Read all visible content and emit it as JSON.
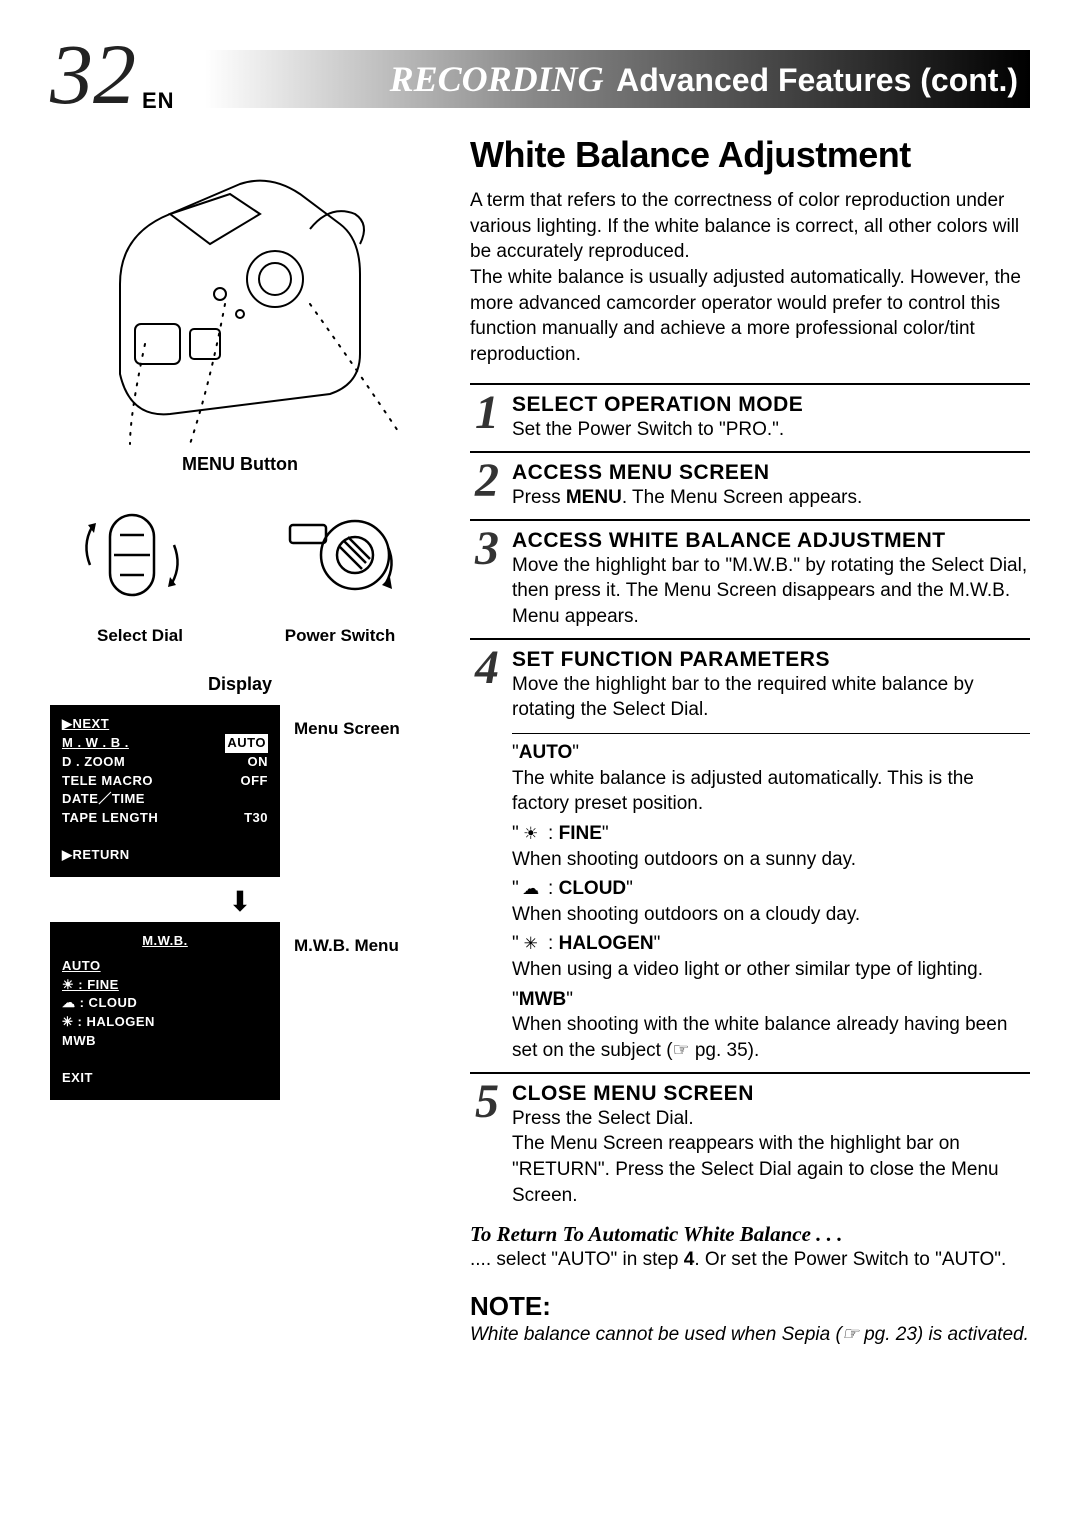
{
  "header": {
    "page_number": "32",
    "lang": "EN",
    "recording": "RECORDING",
    "advanced": "Advanced Features (cont.)"
  },
  "left": {
    "menu_button_label": "MENU Button",
    "select_dial_label": "Select Dial",
    "power_switch_label": "Power Switch",
    "display_heading": "Display",
    "menu_screen_label": "Menu Screen",
    "mwb_menu_label": "M.W.B. Menu",
    "menu_screen": {
      "next": "▶NEXT",
      "mwb_label": "M . W . B .",
      "mwb_value": "AUTO",
      "dzoom_label": "D . ZOOM",
      "dzoom_value": "ON",
      "tele_label": "TELE MACRO",
      "tele_value": "OFF",
      "datetime": "DATE／TIME",
      "tape_label": "TAPE LENGTH",
      "tape_value": "T30",
      "return": "▶RETURN"
    },
    "mwb_screen": {
      "title": "M.W.B.",
      "auto": "AUTO",
      "fine": "☀ : FINE",
      "cloud": "☁ : CLOUD",
      "halogen": "✳ : HALOGEN",
      "mwb": "MWB",
      "exit": "EXIT"
    }
  },
  "right": {
    "section_title": "White Balance Adjustment",
    "intro": "A term that refers to the correctness of color reproduction under various lighting. If the white balance is correct, all other colors will be accurately reproduced.\nThe white balance is usually adjusted automatically. However, the more advanced camcorder operator would prefer to control this function manually and achieve a more professional color/tint reproduction.",
    "steps": [
      {
        "num": "1",
        "heading": "SELECT OPERATION MODE",
        "text": "Set the Power Switch to \"PRO.\"."
      },
      {
        "num": "2",
        "heading": "ACCESS MENU SCREEN",
        "text": "Press MENU. The Menu Screen appears."
      },
      {
        "num": "3",
        "heading": "ACCESS WHITE BALANCE ADJUSTMENT",
        "text": "Move the highlight bar to \"M.W.B.\" by rotating the Select Dial, then press it. The Menu Screen disappears and the M.W.B. Menu appears."
      },
      {
        "num": "4",
        "heading": "SET FUNCTION PARAMETERS",
        "text": "Move the highlight bar to the required white balance by rotating the Select Dial."
      },
      {
        "num": "5",
        "heading": "CLOSE MENU SCREEN",
        "text": "Press the Select Dial.\nThe Menu Screen reappears with the highlight bar on \"RETURN\". Press the Select Dial again to close the Menu Screen."
      }
    ],
    "wb_options": [
      {
        "label": "\"AUTO\"",
        "desc": "The white balance is adjusted automatically. This is the factory preset position."
      },
      {
        "label": "\" ☀  : FINE\"",
        "desc": "When shooting outdoors on a sunny day."
      },
      {
        "label": "\" ☁  : CLOUD\"",
        "desc": "When shooting outdoors on a cloudy day."
      },
      {
        "label": "\" ✳  : HALOGEN\"",
        "desc": "When using a video light or other similar type of lighting."
      },
      {
        "label": "\"MWB\"",
        "desc": "When shooting with the white balance already having been set on the subject (☞ pg. 35)."
      }
    ],
    "return_auto_title": "To Return To Automatic White Balance . . .",
    "return_auto_text": ".... select \"AUTO\" in step 4. Or set the Power Switch to \"AUTO\".",
    "note_title": "NOTE:",
    "note_text": "White balance cannot be used when Sepia (☞ pg. 23) is activated."
  },
  "colors": {
    "text": "#000000",
    "bg": "#ffffff",
    "screen_bg": "#000000",
    "screen_fg": "#ffffff",
    "header_gradient_start": "#ffffff",
    "header_gradient_end": "#000000"
  },
  "typography": {
    "page_num_fontsize": 86,
    "section_title_fontsize": 36,
    "body_fontsize": 19,
    "step_heading_fontsize": 21,
    "screen_fontsize": 13
  }
}
